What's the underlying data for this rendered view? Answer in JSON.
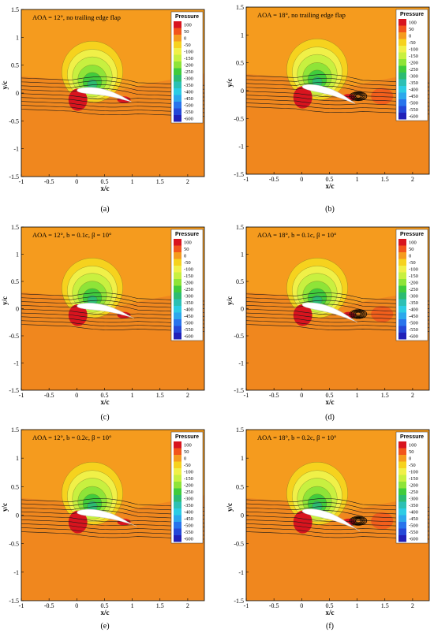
{
  "figure": {
    "panels": [
      {
        "letter": "(a)",
        "annotation": "AOA = 12°, no trailing edge flap",
        "legend_title": "Pressure",
        "legend_levels": [
          "100",
          "50",
          "0",
          "-50",
          "-100",
          "-150",
          "-200",
          "-250",
          "-300",
          "-350",
          "-400",
          "-450",
          "-500",
          "-550",
          "-600"
        ],
        "xlabel": "x/c",
        "ylabel": "y/c",
        "xticks": [
          "-1",
          "-0.5",
          "0",
          "0.5",
          "1",
          "1.5",
          "2"
        ],
        "yticks": [
          "1.5",
          "1",
          "0.5",
          "0",
          "-0.5",
          "-1",
          "-1.5"
        ],
        "aoa": 12,
        "flap": "none",
        "separation": false
      },
      {
        "letter": "(b)",
        "annotation": "AOA = 18°, no trailing edge flap",
        "legend_title": "Pressure",
        "legend_levels": [
          "100",
          "50",
          "0",
          "-50",
          "-100",
          "-150",
          "-200",
          "-250",
          "-300",
          "-350",
          "-400",
          "-450",
          "-500",
          "-550",
          "-600"
        ],
        "xlabel": "x/c",
        "ylabel": "y/c",
        "xticks": [
          "-1",
          "-0.5",
          "0",
          "0.5",
          "1",
          "1.5",
          "2"
        ],
        "yticks": [
          "1.5",
          "1",
          "0.5",
          "0",
          "-0.5",
          "-1",
          "-1.5"
        ],
        "aoa": 18,
        "flap": "none",
        "separation": true
      },
      {
        "letter": "(c)",
        "annotation": "AOA = 12°, b = 0.1c, β = 10°",
        "legend_title": "Pressure",
        "legend_levels": [
          "100",
          "50",
          "0",
          "-50",
          "-100",
          "-150",
          "-200",
          "-250",
          "-300",
          "-350",
          "-400",
          "-450",
          "-500",
          "-550",
          "-600"
        ],
        "xlabel": "x/c",
        "ylabel": "y/c",
        "xticks": [
          "-1",
          "-0.5",
          "0",
          "0.5",
          "1",
          "1.5",
          "2"
        ],
        "yticks": [
          "1.5",
          "1",
          "0.5",
          "0",
          "-0.5",
          "-1",
          "-1.5"
        ],
        "aoa": 12,
        "flap": "0.1c",
        "separation": false
      },
      {
        "letter": "(d)",
        "annotation": "AOA = 18°, b = 0.1c, β = 10°",
        "legend_title": "Pressure",
        "legend_levels": [
          "100",
          "50",
          "0",
          "-50",
          "-100",
          "-150",
          "-200",
          "-250",
          "-300",
          "-350",
          "-400",
          "-450",
          "-500",
          "-550",
          "-600"
        ],
        "xlabel": "x/c",
        "ylabel": "y/c",
        "xticks": [
          "-1",
          "-0.5",
          "0",
          "0.5",
          "1",
          "1.5",
          "2"
        ],
        "yticks": [
          "1.5",
          "1",
          "0.5",
          "0",
          "-0.5",
          "-1",
          "-1.5"
        ],
        "aoa": 18,
        "flap": "0.1c",
        "separation": true
      },
      {
        "letter": "(e)",
        "annotation": "AOA = 12°, b = 0.2c, β = 10°",
        "legend_title": "Pressure",
        "legend_levels": [
          "100",
          "50",
          "0",
          "-50",
          "-100",
          "-150",
          "-200",
          "-250",
          "-300",
          "-350",
          "-400",
          "-450",
          "-500",
          "-550",
          "-600"
        ],
        "xlabel": "x/c",
        "ylabel": "y/c",
        "xticks": [
          "-1",
          "-0.5",
          "0",
          "0.5",
          "1",
          "1.5",
          "2"
        ],
        "yticks": [
          "1.5",
          "1",
          "0.5",
          "0",
          "-0.5",
          "-1",
          "-1.5"
        ],
        "aoa": 12,
        "flap": "0.2c",
        "separation": false
      },
      {
        "letter": "(f)",
        "annotation": "AOA = 18°, b = 0.2c, β = 10°",
        "legend_title": "Pressure",
        "legend_levels": [
          "100",
          "50",
          "0",
          "-50",
          "-100",
          "-150",
          "-200",
          "-250",
          "-300",
          "-350",
          "-400",
          "-450",
          "-500",
          "-550",
          "-600"
        ],
        "xlabel": "x/c",
        "ylabel": "y/c",
        "xticks": [
          "-1",
          "-0.5",
          "0",
          "0.5",
          "1",
          "1.5",
          "2"
        ],
        "yticks": [
          "1.5",
          "1",
          "0.5",
          "0",
          "-0.5",
          "-1",
          "-1.5"
        ],
        "aoa": 18,
        "flap": "0.2c",
        "separation": true
      }
    ]
  },
  "chart_data": {
    "type": "heatmap",
    "colorbar": {
      "title": "Pressure",
      "levels": [
        100,
        50,
        0,
        -50,
        -100,
        -150,
        -200,
        -250,
        -300,
        -350,
        -400,
        -450,
        -500,
        -550,
        -600
      ],
      "colors": [
        "#d8141e",
        "#f2551b",
        "#f59b1e",
        "#f6d21e",
        "#f0f048",
        "#c8f040",
        "#8ee438",
        "#40cc3c",
        "#2cbc72",
        "#2cc0b4",
        "#2ccce4",
        "#2ca8ec",
        "#2874ec",
        "#2448d8",
        "#2020b8"
      ]
    },
    "panels": [
      {
        "label": "(a)",
        "aoa_deg": 12,
        "flap": "none"
      },
      {
        "label": "(b)",
        "aoa_deg": 18,
        "flap": "none"
      },
      {
        "label": "(c)",
        "aoa_deg": 12,
        "flap_length": "0.1c",
        "flap_angle_deg": 10
      },
      {
        "label": "(d)",
        "aoa_deg": 18,
        "flap_length": "0.1c",
        "flap_angle_deg": 10
      },
      {
        "label": "(e)",
        "aoa_deg": 12,
        "flap_length": "0.2c",
        "flap_angle_deg": 10
      },
      {
        "label": "(f)",
        "aoa_deg": 18,
        "flap_length": "0.2c",
        "flap_angle_deg": 10
      }
    ],
    "xlabel": "x/c",
    "ylabel": "y/c",
    "xlim": [
      -1,
      2.3
    ],
    "ylim": [
      -1.5,
      1.5
    ],
    "xticks": [
      -1,
      -0.5,
      0,
      0.5,
      1,
      1.5,
      2
    ],
    "yticks": [
      1.5,
      1,
      0.5,
      0,
      -0.5,
      -1,
      -1.5
    ],
    "grid": false,
    "legend_placement": "top-right"
  }
}
